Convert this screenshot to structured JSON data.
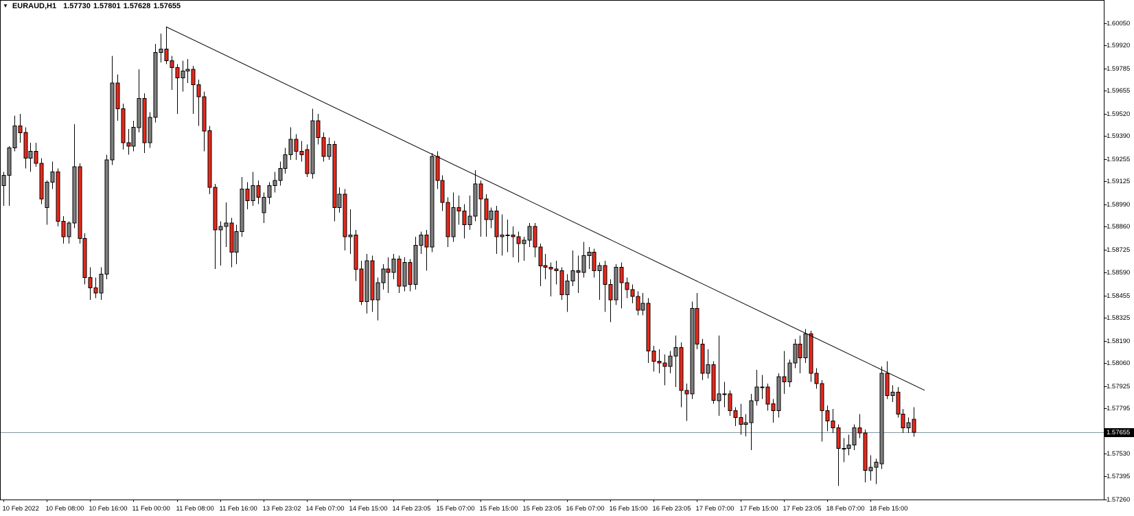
{
  "header": {
    "dropdown_icon": "▼",
    "symbol_period": "EURAUD,H1",
    "open": "1.57730",
    "high": "1.57801",
    "low": "1.57628",
    "close": "1.57655"
  },
  "chart_data": {
    "type": "candlestick",
    "title": "EURAUD,H1",
    "symbol": "EURAUD",
    "timeframe": "H1",
    "bid": 1.57655,
    "price_axis": {
      "current_bid_label": "1.57655",
      "top": 1.6005,
      "bottom": 1.5726,
      "labels": [
        "1.60050",
        "1.59920",
        "1.59785",
        "1.59655",
        "1.59520",
        "1.59390",
        "1.59255",
        "1.59125",
        "1.58990",
        "1.58860",
        "1.58725",
        "1.58590",
        "1.58455",
        "1.58325",
        "1.58190",
        "1.58060",
        "1.57925",
        "1.57795",
        "1.57530",
        "1.57395",
        "1.57260"
      ]
    },
    "time_axis": {
      "candles_per_label": 8,
      "labels": [
        "10 Feb 2022",
        "10 Feb 08:00",
        "10 Feb 16:00",
        "11 Feb 00:00",
        "11 Feb 08:00",
        "11 Feb 16:00",
        "13 Feb 23:02",
        "14 Feb 07:00",
        "14 Feb 15:00",
        "14 Feb 23:05",
        "15 Feb 07:00",
        "15 Feb 15:00",
        "15 Feb 23:05",
        "16 Feb 07:00",
        "16 Feb 15:00",
        "16 Feb 23:05",
        "17 Feb 07:00",
        "17 Feb 15:00",
        "17 Feb 23:05",
        "18 Feb 07:00",
        "18 Feb 15:00"
      ]
    },
    "trendline": {
      "from_candle": 30,
      "from_price": 1.6003,
      "to_candle": 170,
      "to_price": 1.579
    },
    "colors": {
      "bear": "#e8291c",
      "bull": "#7f7f7f",
      "outline": "#000000",
      "wick": "#000000",
      "bid_line": "#7f96a3",
      "bid_tag_bg": "#000000",
      "bid_tag_text": "#ffffff"
    },
    "candles": [
      [
        1.591,
        1.5918,
        1.5898,
        1.5916
      ],
      [
        1.5916,
        1.5933,
        1.5898,
        1.5932
      ],
      [
        1.5932,
        1.5951,
        1.593,
        1.5945
      ],
      [
        1.5945,
        1.5952,
        1.5935,
        1.5941
      ],
      [
        1.5941,
        1.5944,
        1.592,
        1.5926
      ],
      [
        1.5926,
        1.5935,
        1.5918,
        1.593
      ],
      [
        1.593,
        1.5935,
        1.5921,
        1.5923
      ],
      [
        1.5923,
        1.5926,
        1.5899,
        1.5902
      ],
      [
        1.5897,
        1.5913,
        1.5887,
        1.5912
      ],
      [
        1.5912,
        1.5924,
        1.5908,
        1.5918
      ],
      [
        1.5918,
        1.592,
        1.5886,
        1.5889
      ],
      [
        1.5889,
        1.5892,
        1.5876,
        1.588
      ],
      [
        1.588,
        1.5889,
        1.5876,
        1.5888
      ],
      [
        1.5888,
        1.5946,
        1.5885,
        1.5921
      ],
      [
        1.5921,
        1.5923,
        1.5876,
        1.5879
      ],
      [
        1.5879,
        1.5882,
        1.5852,
        1.5856
      ],
      [
        1.5856,
        1.5862,
        1.5843,
        1.585
      ],
      [
        1.585,
        1.5856,
        1.5844,
        1.5847
      ],
      [
        1.5847,
        1.5862,
        1.5843,
        1.5858
      ],
      [
        1.5858,
        1.5928,
        1.5855,
        1.5925
      ],
      [
        1.5925,
        1.5986,
        1.5922,
        1.597
      ],
      [
        1.597,
        1.5975,
        1.5948,
        1.5955
      ],
      [
        1.5955,
        1.5958,
        1.5931,
        1.5935
      ],
      [
        1.5935,
        1.5943,
        1.5928,
        1.5933
      ],
      [
        1.5933,
        1.5948,
        1.593,
        1.5944
      ],
      [
        1.5944,
        1.5978,
        1.5941,
        1.5961
      ],
      [
        1.5961,
        1.5964,
        1.5929,
        1.5935
      ],
      [
        1.5935,
        1.5953,
        1.5932,
        1.595
      ],
      [
        1.595,
        1.5993,
        1.5947,
        1.5988
      ],
      [
        1.5988,
        1.5999,
        1.5982,
        1.599
      ],
      [
        1.599,
        1.6003,
        1.5981,
        1.5983
      ],
      [
        1.5983,
        1.5986,
        1.5966,
        1.5979
      ],
      [
        1.5979,
        1.5981,
        1.5952,
        1.5973
      ],
      [
        1.5973,
        1.5983,
        1.5965,
        1.5977
      ],
      [
        1.5977,
        1.5984,
        1.597,
        1.5978
      ],
      [
        1.5978,
        1.598,
        1.5952,
        1.5969
      ],
      [
        1.5969,
        1.5972,
        1.5945,
        1.5962
      ],
      [
        1.5962,
        1.5965,
        1.593,
        1.5942
      ],
      [
        1.5942,
        1.5945,
        1.5905,
        1.5909
      ],
      [
        1.5909,
        1.5911,
        1.5861,
        1.5884
      ],
      [
        1.5884,
        1.5889,
        1.5863,
        1.5886
      ],
      [
        1.5886,
        1.59,
        1.5874,
        1.5888
      ],
      [
        1.5888,
        1.5891,
        1.5862,
        1.5871
      ],
      [
        1.5871,
        1.5887,
        1.5864,
        1.5883
      ],
      [
        1.5883,
        1.5915,
        1.588,
        1.5908
      ],
      [
        1.5908,
        1.5912,
        1.5896,
        1.5901
      ],
      [
        1.5901,
        1.5918,
        1.5898,
        1.591
      ],
      [
        1.591,
        1.5913,
        1.5899,
        1.5903
      ],
      [
        1.5894,
        1.5906,
        1.5888,
        1.5903
      ],
      [
        1.5903,
        1.5912,
        1.5899,
        1.591
      ],
      [
        1.591,
        1.5918,
        1.5906,
        1.5913
      ],
      [
        1.5913,
        1.5924,
        1.591,
        1.592
      ],
      [
        1.592,
        1.5932,
        1.5917,
        1.5928
      ],
      [
        1.5928,
        1.5944,
        1.5925,
        1.5937
      ],
      [
        1.5937,
        1.594,
        1.5925,
        1.593
      ],
      [
        1.593,
        1.5936,
        1.5924,
        1.5928
      ],
      [
        1.5931,
        1.5934,
        1.5915,
        1.5917
      ],
      [
        1.5917,
        1.5955,
        1.5914,
        1.5948
      ],
      [
        1.5948,
        1.5952,
        1.5934,
        1.5938
      ],
      [
        1.5938,
        1.5941,
        1.5924,
        1.5927
      ],
      [
        1.5927,
        1.5938,
        1.5925,
        1.5934
      ],
      [
        1.5934,
        1.5936,
        1.5889,
        1.5897
      ],
      [
        1.5897,
        1.5909,
        1.5894,
        1.5905
      ],
      [
        1.5905,
        1.5908,
        1.5872,
        1.588
      ],
      [
        1.588,
        1.5896,
        1.587,
        1.5881
      ],
      [
        1.5881,
        1.5884,
        1.5854,
        1.5861
      ],
      [
        1.5861,
        1.5866,
        1.584,
        1.5842
      ],
      [
        1.5842,
        1.587,
        1.5835,
        1.5866
      ],
      [
        1.5866,
        1.5869,
        1.5836,
        1.5843
      ],
      [
        1.5843,
        1.5856,
        1.5831,
        1.5853
      ],
      [
        1.5853,
        1.5864,
        1.5849,
        1.5861
      ],
      [
        1.5861,
        1.5868,
        1.5847,
        1.5859
      ],
      [
        1.5859,
        1.587,
        1.5855,
        1.5867
      ],
      [
        1.5867,
        1.5869,
        1.5847,
        1.5851
      ],
      [
        1.5851,
        1.5868,
        1.5848,
        1.5865
      ],
      [
        1.5865,
        1.5867,
        1.5848,
        1.5852
      ],
      [
        1.5852,
        1.588,
        1.5849,
        1.5875
      ],
      [
        1.5875,
        1.5883,
        1.587,
        1.5881
      ],
      [
        1.5881,
        1.5884,
        1.586,
        1.5874
      ],
      [
        1.5874,
        1.5929,
        1.5871,
        1.5927
      ],
      [
        1.5927,
        1.593,
        1.5908,
        1.5913
      ],
      [
        1.5913,
        1.5916,
        1.5895,
        1.59
      ],
      [
        1.59,
        1.5903,
        1.5874,
        1.588
      ],
      [
        1.588,
        1.5906,
        1.5877,
        1.5897
      ],
      [
        1.5897,
        1.5904,
        1.5887,
        1.5895
      ],
      [
        1.5895,
        1.5899,
        1.5879,
        1.5887
      ],
      [
        1.5887,
        1.5904,
        1.5884,
        1.5892
      ],
      [
        1.5892,
        1.5919,
        1.5889,
        1.5911
      ],
      [
        1.5911,
        1.5913,
        1.588,
        1.5902
      ],
      [
        1.5902,
        1.5905,
        1.588,
        1.589
      ],
      [
        1.589,
        1.5897,
        1.5885,
        1.5895
      ],
      [
        1.5895,
        1.5898,
        1.587,
        1.588
      ],
      [
        1.588,
        1.5893,
        1.5869,
        1.5881
      ],
      [
        1.5881,
        1.589,
        1.5871,
        1.5881
      ],
      [
        1.5881,
        1.5886,
        1.5868,
        1.588
      ],
      [
        1.588,
        1.5883,
        1.5865,
        1.5876
      ],
      [
        1.5876,
        1.588,
        1.5866,
        1.5878
      ],
      [
        1.5878,
        1.5888,
        1.5874,
        1.5886
      ],
      [
        1.5886,
        1.5888,
        1.5868,
        1.5874
      ],
      [
        1.5874,
        1.5876,
        1.5851,
        1.5863
      ],
      [
        1.5863,
        1.587,
        1.5855,
        1.5862
      ],
      [
        1.5862,
        1.5865,
        1.5845,
        1.5861
      ],
      [
        1.5861,
        1.5866,
        1.5852,
        1.586
      ],
      [
        1.586,
        1.5862,
        1.5843,
        1.5846
      ],
      [
        1.5846,
        1.5858,
        1.5836,
        1.5854
      ],
      [
        1.5854,
        1.5872,
        1.5851,
        1.586
      ],
      [
        1.586,
        1.5869,
        1.5847,
        1.5859
      ],
      [
        1.5859,
        1.5877,
        1.5856,
        1.5869
      ],
      [
        1.5869,
        1.5874,
        1.5861,
        1.5871
      ],
      [
        1.5871,
        1.5873,
        1.5856,
        1.586
      ],
      [
        1.586,
        1.5865,
        1.5843,
        1.5863
      ],
      [
        1.5863,
        1.5866,
        1.5836,
        1.5852
      ],
      [
        1.5852,
        1.5855,
        1.583,
        1.5843
      ],
      [
        1.5843,
        1.5864,
        1.584,
        1.5862
      ],
      [
        1.5862,
        1.5865,
        1.5838,
        1.5853
      ],
      [
        1.5853,
        1.5856,
        1.5844,
        1.5849
      ],
      [
        1.5849,
        1.5852,
        1.5841,
        1.5845
      ],
      [
        1.5845,
        1.5848,
        1.5834,
        1.5837
      ],
      [
        1.5837,
        1.5847,
        1.5834,
        1.5841
      ],
      [
        1.5841,
        1.5844,
        1.5806,
        1.5813
      ],
      [
        1.5813,
        1.5816,
        1.5801,
        1.5807
      ],
      [
        1.5807,
        1.5814,
        1.58,
        1.5806
      ],
      [
        1.5806,
        1.5811,
        1.5793,
        1.5804
      ],
      [
        1.5804,
        1.5813,
        1.58,
        1.581
      ],
      [
        1.581,
        1.5822,
        1.5792,
        1.5815
      ],
      [
        1.5815,
        1.5818,
        1.578,
        1.579
      ],
      [
        1.579,
        1.5794,
        1.5772,
        1.5788
      ],
      [
        1.5788,
        1.5842,
        1.5785,
        1.5838
      ],
      [
        1.5838,
        1.5847,
        1.5814,
        1.5817
      ],
      [
        1.5817,
        1.582,
        1.5796,
        1.58
      ],
      [
        1.58,
        1.5814,
        1.5797,
        1.5805
      ],
      [
        1.5805,
        1.5807,
        1.5782,
        1.5784
      ],
      [
        1.5784,
        1.5822,
        1.5775,
        1.5788
      ],
      [
        1.5788,
        1.5795,
        1.578,
        1.5788
      ],
      [
        1.5788,
        1.579,
        1.5775,
        1.5778
      ],
      [
        1.5778,
        1.578,
        1.5769,
        1.5774
      ],
      [
        1.5774,
        1.5782,
        1.5764,
        1.577
      ],
      [
        1.577,
        1.5776,
        1.5763,
        1.5771
      ],
      [
        1.5771,
        1.5788,
        1.5755,
        1.5784
      ],
      [
        1.5784,
        1.5802,
        1.5781,
        1.5792
      ],
      [
        1.5792,
        1.5799,
        1.5785,
        1.5792
      ],
      [
        1.5792,
        1.5794,
        1.5778,
        1.5782
      ],
      [
        1.5782,
        1.5785,
        1.5771,
        1.5778
      ],
      [
        1.5778,
        1.58,
        1.5774,
        1.5798
      ],
      [
        1.5798,
        1.5813,
        1.5788,
        1.5795
      ],
      [
        1.5795,
        1.5808,
        1.5792,
        1.5806
      ],
      [
        1.5806,
        1.582,
        1.5803,
        1.5817
      ],
      [
        1.5817,
        1.5822,
        1.58,
        1.5809
      ],
      [
        1.5809,
        1.5826,
        1.5806,
        1.5823
      ],
      [
        1.5823,
        1.5825,
        1.5795,
        1.58
      ],
      [
        1.58,
        1.5803,
        1.5791,
        1.5794
      ],
      [
        1.5794,
        1.5796,
        1.576,
        1.5778
      ],
      [
        1.5778,
        1.5781,
        1.5766,
        1.5772
      ],
      [
        1.5772,
        1.5779,
        1.5765,
        1.5768
      ],
      [
        1.5768,
        1.577,
        1.5734,
        1.5756
      ],
      [
        1.5756,
        1.5762,
        1.5748,
        1.5756
      ],
      [
        1.5756,
        1.5764,
        1.5752,
        1.5758
      ],
      [
        1.5758,
        1.577,
        1.5755,
        1.5768
      ],
      [
        1.5768,
        1.5776,
        1.5762,
        1.5765
      ],
      [
        1.5765,
        1.5767,
        1.5736,
        1.5743
      ],
      [
        1.5743,
        1.5752,
        1.5737,
        1.5745
      ],
      [
        1.5745,
        1.575,
        1.5735,
        1.5748
      ],
      [
        1.5747,
        1.5804,
        1.5744,
        1.58
      ],
      [
        1.58,
        1.5807,
        1.5785,
        1.5787
      ],
      [
        1.5787,
        1.5793,
        1.5783,
        1.5789
      ],
      [
        1.5789,
        1.5792,
        1.5774,
        1.5776
      ],
      [
        1.5776,
        1.5779,
        1.5765,
        1.5768
      ],
      [
        1.5768,
        1.5774,
        1.5765,
        1.5771
      ],
      [
        1.5773,
        1.57801,
        1.57628,
        1.57655
      ]
    ]
  }
}
